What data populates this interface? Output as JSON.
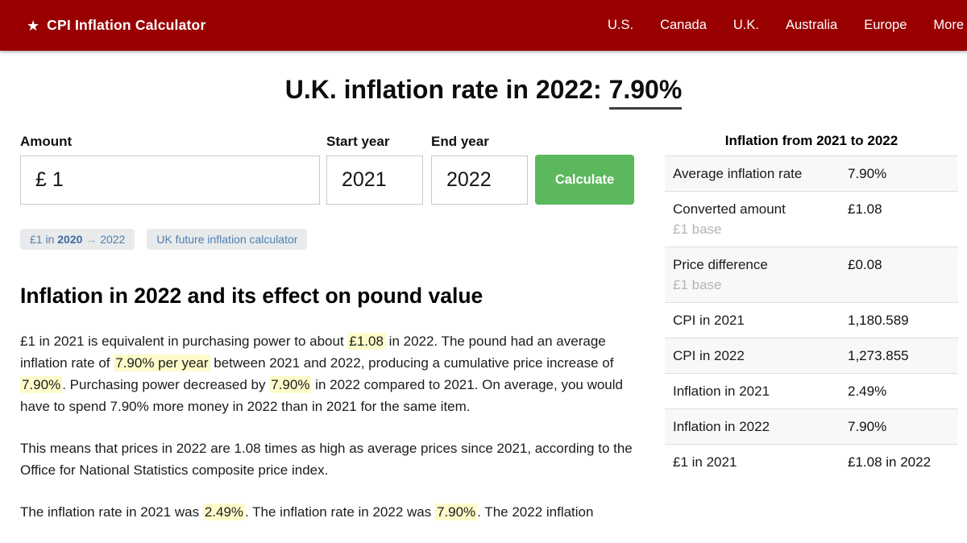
{
  "header": {
    "brand": {
      "star_icon": "★",
      "title": "CPI Inflation Calculator"
    },
    "nav": [
      {
        "id": "us",
        "label": "U.S."
      },
      {
        "id": "canada",
        "label": "Canada"
      },
      {
        "id": "uk",
        "label": "U.K."
      },
      {
        "id": "australia",
        "label": "Australia"
      },
      {
        "id": "europe",
        "label": "Europe"
      },
      {
        "id": "more",
        "label": "More"
      }
    ]
  },
  "page_title": {
    "prefix": "U.K. inflation rate in 2022: ",
    "underlined": "7.90%"
  },
  "calculator": {
    "amount_label": "Amount",
    "amount_value": "£ 1",
    "start_year_label": "Start year",
    "start_year_value": "2021",
    "end_year_label": "End year",
    "end_year_value": "2022",
    "calculate_label": "Calculate"
  },
  "quick_links": [
    {
      "name": "pound-in-2020-link",
      "parts": [
        {
          "t": "£1 in ",
          "c": "link"
        },
        {
          "t": "2020",
          "c": "strong"
        },
        {
          "t": " → ",
          "c": "arrow"
        },
        {
          "t": "2022",
          "c": "link"
        }
      ]
    },
    {
      "name": "uk-future-inflation-link",
      "parts": [
        {
          "t": "UK future inflation calculator",
          "c": "link"
        }
      ]
    }
  ],
  "article": {
    "heading": "Inflation in 2022 and its effect on pound value",
    "paragraphs": [
      [
        {
          "t": "£1 in 2021 is equivalent in purchasing power to about "
        },
        {
          "t": "£1.08",
          "h": true
        },
        {
          "t": " in 2022. The pound had an average inflation rate of "
        },
        {
          "t": "7.90% per year",
          "h": true
        },
        {
          "t": " between 2021 and 2022, producing a cumulative price increase of "
        },
        {
          "t": "7.90%",
          "h": true
        },
        {
          "t": ". Purchasing power decreased by "
        },
        {
          "t": "7.90%",
          "h": true
        },
        {
          "t": " in 2022 compared to 2021. On average, you would have to spend 7.90% more money in 2022 than in 2021 for the same item."
        }
      ],
      [
        {
          "t": "This means that prices in 2022 are 1.08 times as high as average prices since 2021, according to the Office for National Statistics composite price index."
        }
      ],
      [
        {
          "t": "The inflation rate in 2021 was "
        },
        {
          "t": "2.49%",
          "h": true
        },
        {
          "t": ". The inflation rate in 2022 was "
        },
        {
          "t": "7.90%",
          "h": true
        },
        {
          "t": ". The 2022 inflation"
        }
      ]
    ]
  },
  "summary_table": {
    "title": "Inflation from 2021 to 2022",
    "rows": [
      {
        "label": "Average inflation rate",
        "value": "7.90%"
      },
      {
        "label": "Converted amount",
        "sublabel": "£1 base",
        "value": "£1.08"
      },
      {
        "label": "Price difference",
        "sublabel": "£1 base",
        "value": "£0.08"
      },
      {
        "label": "CPI in 2021",
        "value": "1,180.589"
      },
      {
        "label": "CPI in 2022",
        "value": "1,273.855"
      },
      {
        "label": "Inflation in 2021",
        "value": "2.49%"
      },
      {
        "label": "Inflation in 2022",
        "value": "7.90%"
      },
      {
        "label": "£1 in 2021",
        "value": "£1.08 in 2022"
      }
    ]
  },
  "colors": {
    "header_bg": "#990000",
    "nav_text": "#ffffff",
    "calculate_button": "#5cb85c",
    "highlight": "#fdfbca",
    "link_blue": "#4c7fb0",
    "chip_bg": "#e9eaec",
    "row_stripe": "#f8f8f8",
    "row_border": "#dddddd",
    "muted_text": "#b5b5b5",
    "title_underline": "#3f3f3f"
  }
}
